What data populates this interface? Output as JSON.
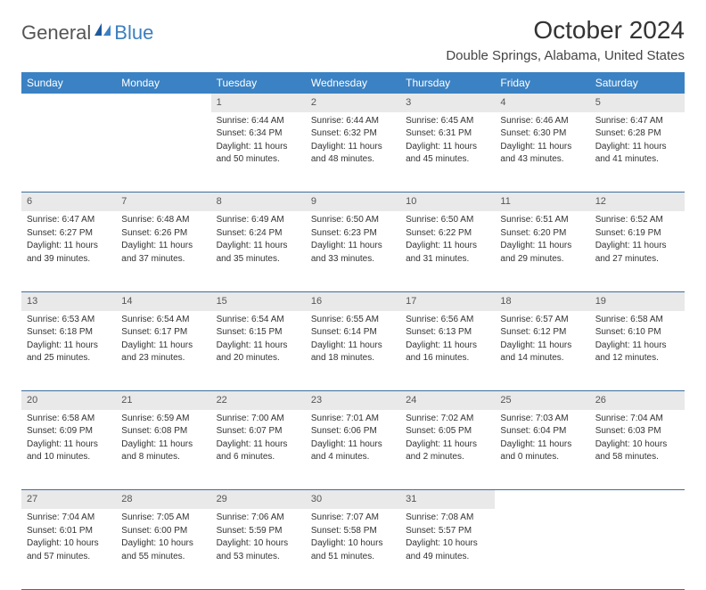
{
  "logo": {
    "general": "General",
    "blue": "Blue"
  },
  "title": "October 2024",
  "location": "Double Springs, Alabama, United States",
  "colors": {
    "header_bg": "#3b82c4",
    "header_text": "#ffffff",
    "daynum_bg": "#e9e9e9",
    "row_divider": "#3b6ea0",
    "logo_blue": "#3b7fbf"
  },
  "weekdays": [
    "Sunday",
    "Monday",
    "Tuesday",
    "Wednesday",
    "Thursday",
    "Friday",
    "Saturday"
  ],
  "weeks": [
    [
      null,
      null,
      {
        "n": "1",
        "sr": "Sunrise: 6:44 AM",
        "ss": "Sunset: 6:34 PM",
        "d1": "Daylight: 11 hours",
        "d2": "and 50 minutes."
      },
      {
        "n": "2",
        "sr": "Sunrise: 6:44 AM",
        "ss": "Sunset: 6:32 PM",
        "d1": "Daylight: 11 hours",
        "d2": "and 48 minutes."
      },
      {
        "n": "3",
        "sr": "Sunrise: 6:45 AM",
        "ss": "Sunset: 6:31 PM",
        "d1": "Daylight: 11 hours",
        "d2": "and 45 minutes."
      },
      {
        "n": "4",
        "sr": "Sunrise: 6:46 AM",
        "ss": "Sunset: 6:30 PM",
        "d1": "Daylight: 11 hours",
        "d2": "and 43 minutes."
      },
      {
        "n": "5",
        "sr": "Sunrise: 6:47 AM",
        "ss": "Sunset: 6:28 PM",
        "d1": "Daylight: 11 hours",
        "d2": "and 41 minutes."
      }
    ],
    [
      {
        "n": "6",
        "sr": "Sunrise: 6:47 AM",
        "ss": "Sunset: 6:27 PM",
        "d1": "Daylight: 11 hours",
        "d2": "and 39 minutes."
      },
      {
        "n": "7",
        "sr": "Sunrise: 6:48 AM",
        "ss": "Sunset: 6:26 PM",
        "d1": "Daylight: 11 hours",
        "d2": "and 37 minutes."
      },
      {
        "n": "8",
        "sr": "Sunrise: 6:49 AM",
        "ss": "Sunset: 6:24 PM",
        "d1": "Daylight: 11 hours",
        "d2": "and 35 minutes."
      },
      {
        "n": "9",
        "sr": "Sunrise: 6:50 AM",
        "ss": "Sunset: 6:23 PM",
        "d1": "Daylight: 11 hours",
        "d2": "and 33 minutes."
      },
      {
        "n": "10",
        "sr": "Sunrise: 6:50 AM",
        "ss": "Sunset: 6:22 PM",
        "d1": "Daylight: 11 hours",
        "d2": "and 31 minutes."
      },
      {
        "n": "11",
        "sr": "Sunrise: 6:51 AM",
        "ss": "Sunset: 6:20 PM",
        "d1": "Daylight: 11 hours",
        "d2": "and 29 minutes."
      },
      {
        "n": "12",
        "sr": "Sunrise: 6:52 AM",
        "ss": "Sunset: 6:19 PM",
        "d1": "Daylight: 11 hours",
        "d2": "and 27 minutes."
      }
    ],
    [
      {
        "n": "13",
        "sr": "Sunrise: 6:53 AM",
        "ss": "Sunset: 6:18 PM",
        "d1": "Daylight: 11 hours",
        "d2": "and 25 minutes."
      },
      {
        "n": "14",
        "sr": "Sunrise: 6:54 AM",
        "ss": "Sunset: 6:17 PM",
        "d1": "Daylight: 11 hours",
        "d2": "and 23 minutes."
      },
      {
        "n": "15",
        "sr": "Sunrise: 6:54 AM",
        "ss": "Sunset: 6:15 PM",
        "d1": "Daylight: 11 hours",
        "d2": "and 20 minutes."
      },
      {
        "n": "16",
        "sr": "Sunrise: 6:55 AM",
        "ss": "Sunset: 6:14 PM",
        "d1": "Daylight: 11 hours",
        "d2": "and 18 minutes."
      },
      {
        "n": "17",
        "sr": "Sunrise: 6:56 AM",
        "ss": "Sunset: 6:13 PM",
        "d1": "Daylight: 11 hours",
        "d2": "and 16 minutes."
      },
      {
        "n": "18",
        "sr": "Sunrise: 6:57 AM",
        "ss": "Sunset: 6:12 PM",
        "d1": "Daylight: 11 hours",
        "d2": "and 14 minutes."
      },
      {
        "n": "19",
        "sr": "Sunrise: 6:58 AM",
        "ss": "Sunset: 6:10 PM",
        "d1": "Daylight: 11 hours",
        "d2": "and 12 minutes."
      }
    ],
    [
      {
        "n": "20",
        "sr": "Sunrise: 6:58 AM",
        "ss": "Sunset: 6:09 PM",
        "d1": "Daylight: 11 hours",
        "d2": "and 10 minutes."
      },
      {
        "n": "21",
        "sr": "Sunrise: 6:59 AM",
        "ss": "Sunset: 6:08 PM",
        "d1": "Daylight: 11 hours",
        "d2": "and 8 minutes."
      },
      {
        "n": "22",
        "sr": "Sunrise: 7:00 AM",
        "ss": "Sunset: 6:07 PM",
        "d1": "Daylight: 11 hours",
        "d2": "and 6 minutes."
      },
      {
        "n": "23",
        "sr": "Sunrise: 7:01 AM",
        "ss": "Sunset: 6:06 PM",
        "d1": "Daylight: 11 hours",
        "d2": "and 4 minutes."
      },
      {
        "n": "24",
        "sr": "Sunrise: 7:02 AM",
        "ss": "Sunset: 6:05 PM",
        "d1": "Daylight: 11 hours",
        "d2": "and 2 minutes."
      },
      {
        "n": "25",
        "sr": "Sunrise: 7:03 AM",
        "ss": "Sunset: 6:04 PM",
        "d1": "Daylight: 11 hours",
        "d2": "and 0 minutes."
      },
      {
        "n": "26",
        "sr": "Sunrise: 7:04 AM",
        "ss": "Sunset: 6:03 PM",
        "d1": "Daylight: 10 hours",
        "d2": "and 58 minutes."
      }
    ],
    [
      {
        "n": "27",
        "sr": "Sunrise: 7:04 AM",
        "ss": "Sunset: 6:01 PM",
        "d1": "Daylight: 10 hours",
        "d2": "and 57 minutes."
      },
      {
        "n": "28",
        "sr": "Sunrise: 7:05 AM",
        "ss": "Sunset: 6:00 PM",
        "d1": "Daylight: 10 hours",
        "d2": "and 55 minutes."
      },
      {
        "n": "29",
        "sr": "Sunrise: 7:06 AM",
        "ss": "Sunset: 5:59 PM",
        "d1": "Daylight: 10 hours",
        "d2": "and 53 minutes."
      },
      {
        "n": "30",
        "sr": "Sunrise: 7:07 AM",
        "ss": "Sunset: 5:58 PM",
        "d1": "Daylight: 10 hours",
        "d2": "and 51 minutes."
      },
      {
        "n": "31",
        "sr": "Sunrise: 7:08 AM",
        "ss": "Sunset: 5:57 PM",
        "d1": "Daylight: 10 hours",
        "d2": "and 49 minutes."
      },
      null,
      null
    ]
  ]
}
